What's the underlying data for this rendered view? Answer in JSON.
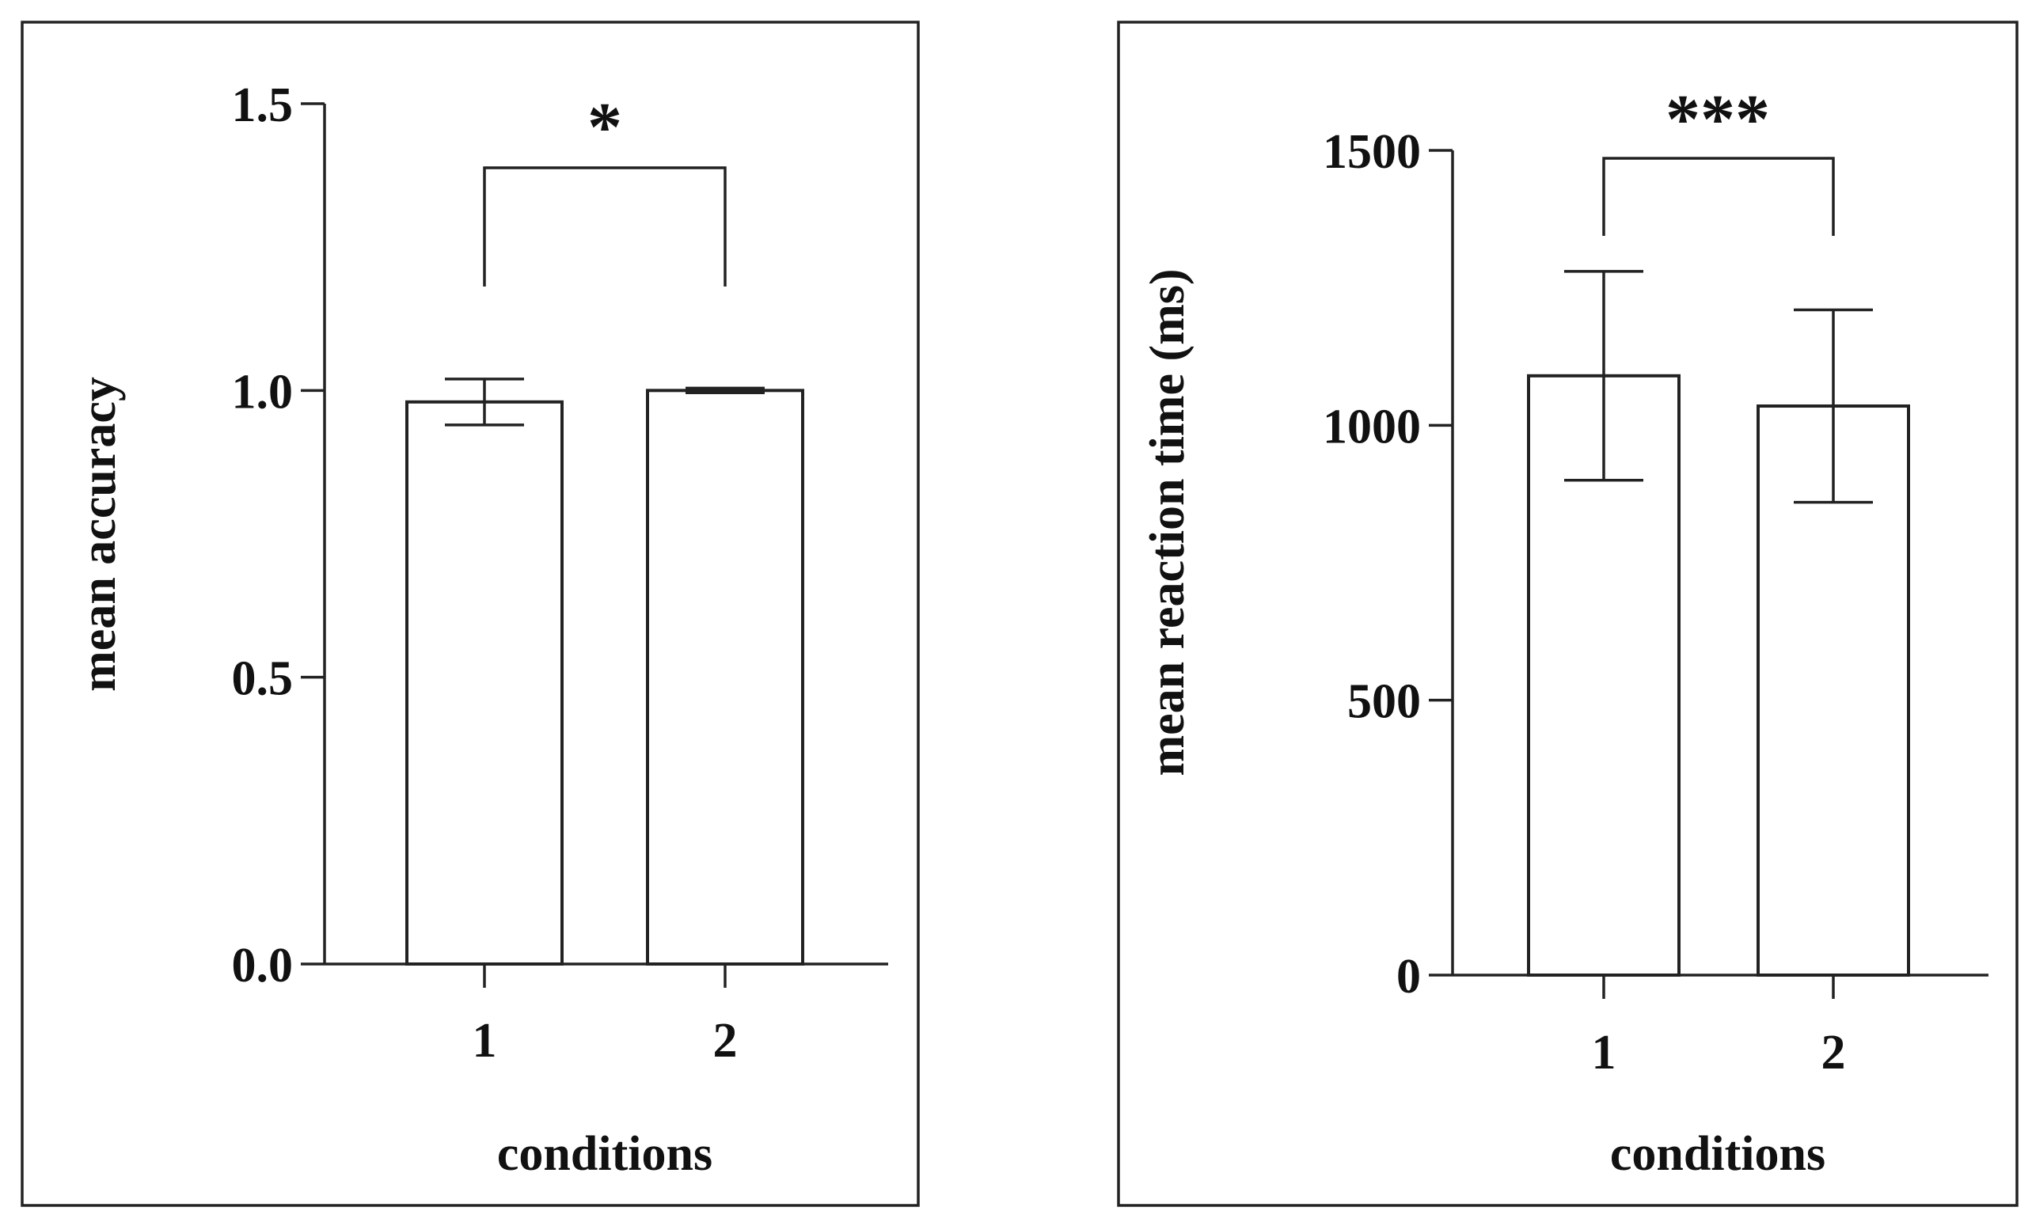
{
  "chart_data": [
    {
      "type": "bar",
      "categories": [
        "1",
        "2"
      ],
      "values": [
        0.98,
        1.0
      ],
      "errors": [
        0.04,
        0.004
      ],
      "xlabel": "conditions",
      "ylabel": "mean accuracy",
      "ylim": [
        0,
        1.5
      ],
      "yticks": [
        "0.0",
        "0.5",
        "1.0",
        "1.5"
      ],
      "significance": "*",
      "grid": false,
      "legend": "none"
    },
    {
      "type": "bar",
      "categories": [
        "1",
        "2"
      ],
      "values": [
        1090,
        1035
      ],
      "errors": [
        190,
        175
      ],
      "xlabel": "conditions",
      "ylabel": "mean reaction time (ms)",
      "ylim": [
        0,
        1500
      ],
      "yticks": [
        "0",
        "500",
        "1000",
        "1500"
      ],
      "significance": "***",
      "grid": false,
      "legend": "none"
    }
  ]
}
